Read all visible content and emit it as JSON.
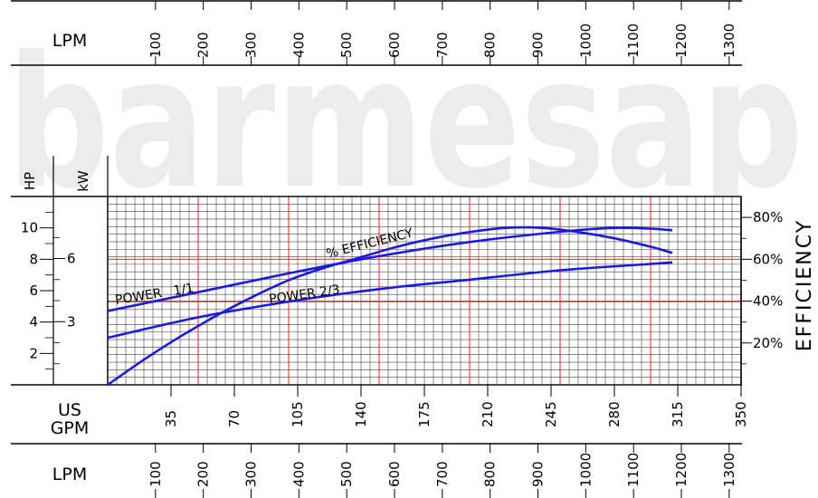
{
  "watermark": "barmesap",
  "axis_labels": {
    "hp": "HP",
    "kw": "kW",
    "us_gpm_line1": "US",
    "us_gpm_line2": "GPM",
    "lpm_top": "LPM",
    "lpm_bottom": "LPM",
    "efficiency": "EFFICIENCY"
  },
  "curve_labels": {
    "efficiency": "% EFFICIENCY",
    "power_full": "POWER   1/1",
    "power_two_thirds": "POWER 2/3"
  },
  "chart_data": {
    "type": "line",
    "x_unit": "US GPM",
    "xlim": [
      0,
      350
    ],
    "x_ticks": [
      35,
      70,
      105,
      140,
      175,
      210,
      245,
      280,
      315,
      350
    ],
    "y_left_hp": {
      "ylim": [
        0,
        12
      ],
      "ticks": [
        2,
        4,
        6,
        8,
        10
      ]
    },
    "y_left_kw": {
      "ticks": [
        3,
        6
      ]
    },
    "y_right_efficiency": {
      "ylim": [
        0,
        90
      ],
      "ticks": [
        20,
        40,
        60,
        80
      ],
      "tick_labels": [
        "20%",
        "40%",
        "60%",
        "80%"
      ]
    },
    "lpm_ticks": [
      100,
      200,
      300,
      400,
      500,
      600,
      700,
      800,
      900,
      1000,
      1100,
      1200,
      1300
    ],
    "grid": true,
    "series": [
      {
        "name": "% EFFICIENCY",
        "axis": "efficiency",
        "x": [
          0,
          20,
          40,
          60,
          80,
          100,
          120,
          140,
          160,
          180,
          200,
          220,
          240,
          260,
          280,
          300,
          312
        ],
        "y": [
          0,
          12,
          23,
          33,
          42,
          50,
          56,
          61,
          66,
          70,
          73,
          75,
          75,
          73,
          70,
          66,
          63
        ]
      },
      {
        "name": "POWER 1/1",
        "axis": "hp",
        "x": [
          0,
          50,
          100,
          150,
          200,
          250,
          280,
          300,
          312
        ],
        "y": [
          4.7,
          5.9,
          7.1,
          8.2,
          9.1,
          9.75,
          10.0,
          9.95,
          9.85
        ]
      },
      {
        "name": "POWER 2/3",
        "axis": "hp",
        "x": [
          0,
          50,
          100,
          150,
          200,
          250,
          300,
          312
        ],
        "y": [
          3.0,
          4.3,
          5.3,
          6.1,
          6.7,
          7.3,
          7.7,
          7.8
        ]
      }
    ]
  }
}
